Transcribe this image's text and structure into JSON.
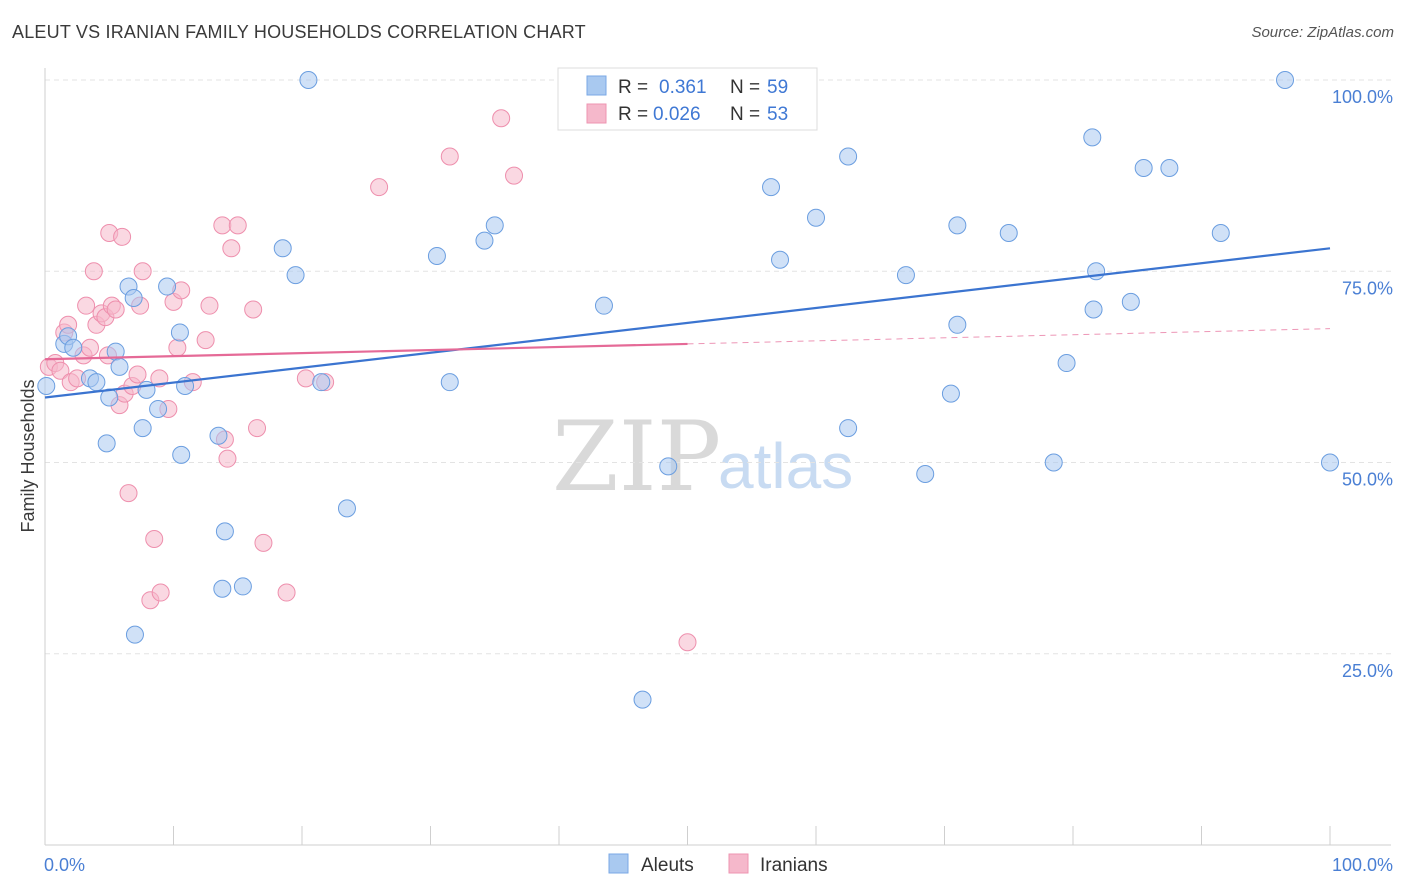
{
  "title": "ALEUT VS IRANIAN FAMILY HOUSEHOLDS CORRELATION CHART",
  "source": "Source: ZipAtlas.com",
  "watermark": {
    "zip": "ZIP",
    "atlas": "atlas"
  },
  "legend_box": {
    "rows": [
      {
        "r_label": "R =",
        "r_value": "0.361",
        "n_label": "N =",
        "n_value": "59",
        "color": "#a9c9f0"
      },
      {
        "r_label": "R =",
        "r_value": "0.026",
        "n_label": "N =",
        "n_value": "53",
        "color": "#f5b8cb"
      }
    ]
  },
  "bottom_legend": [
    {
      "label": "Aleuts",
      "color": "#a9c9f0"
    },
    {
      "label": "Iranians",
      "color": "#f5b8cb"
    }
  ],
  "chart_data": {
    "type": "scatter",
    "title": "ALEUT VS IRANIAN FAMILY HOUSEHOLDS CORRELATION CHART",
    "xlabel": "",
    "ylabel": "Family Households",
    "xlim": [
      0,
      100
    ],
    "ylim": [
      0,
      105
    ],
    "x_tick_labels": [
      {
        "value": 0,
        "label": "0.0%"
      },
      {
        "value": 100,
        "label": "100.0%"
      }
    ],
    "y_tick_labels": [
      {
        "value": 25,
        "label": "25.0%"
      },
      {
        "value": 50,
        "label": "50.0%"
      },
      {
        "value": 75,
        "label": "75.0%"
      },
      {
        "value": 100,
        "label": "100.0%"
      }
    ],
    "grid": true,
    "legend_position": "top-center",
    "series": [
      {
        "name": "Aleuts",
        "color": "#a9c9f0",
        "stroke": "#6b9ee0",
        "trend": {
          "x": [
            0,
            100
          ],
          "y": [
            58.5,
            78
          ],
          "color": "#3b74d0"
        },
        "points": [
          [
            0.1,
            60
          ],
          [
            1.5,
            65.5
          ],
          [
            1.8,
            66.5
          ],
          [
            2.2,
            65
          ],
          [
            3.5,
            61
          ],
          [
            4,
            60.5
          ],
          [
            4.8,
            52.5
          ],
          [
            5,
            58.5
          ],
          [
            5.5,
            64.5
          ],
          [
            5.8,
            62.5
          ],
          [
            6.5,
            73
          ],
          [
            6.9,
            71.5
          ],
          [
            7,
            27.5
          ],
          [
            7.6,
            54.5
          ],
          [
            7.9,
            59.5
          ],
          [
            8.8,
            57
          ],
          [
            9.5,
            73
          ],
          [
            10.5,
            67
          ],
          [
            10.6,
            51
          ],
          [
            10.9,
            60
          ],
          [
            13.5,
            53.5
          ],
          [
            13.8,
            33.5
          ],
          [
            14,
            41
          ],
          [
            15.4,
            33.8
          ],
          [
            18.5,
            78
          ],
          [
            19.5,
            74.5
          ],
          [
            20.5,
            100
          ],
          [
            21.5,
            60.5
          ],
          [
            23.5,
            44
          ],
          [
            30.5,
            77
          ],
          [
            31.5,
            60.5
          ],
          [
            34.2,
            79
          ],
          [
            35,
            81
          ],
          [
            43.5,
            70.5
          ],
          [
            46.5,
            19
          ],
          [
            48.5,
            49.5
          ],
          [
            56.5,
            86
          ],
          [
            57.2,
            76.5
          ],
          [
            60,
            82
          ],
          [
            62.5,
            90
          ],
          [
            62.5,
            54.5
          ],
          [
            67,
            74.5
          ],
          [
            68.5,
            48.5
          ],
          [
            70.5,
            59
          ],
          [
            71,
            68
          ],
          [
            71,
            81
          ],
          [
            75,
            80
          ],
          [
            78.5,
            50
          ],
          [
            79.5,
            63
          ],
          [
            81.5,
            92.5
          ],
          [
            81.6,
            70
          ],
          [
            81.8,
            75
          ],
          [
            84.5,
            71
          ],
          [
            85.5,
            88.5
          ],
          [
            87.5,
            88.5
          ],
          [
            91.5,
            80
          ],
          [
            96.5,
            100
          ],
          [
            100,
            50
          ],
          [
            56,
            100
          ]
        ]
      },
      {
        "name": "Iranians",
        "color": "#f5b8cb",
        "stroke": "#ee8fad",
        "trend": {
          "x": [
            0,
            50
          ],
          "y": [
            63.5,
            65.5
          ],
          "color": "#e56a97",
          "dashed_extension": {
            "x": [
              50,
              100
            ],
            "y": [
              65.5,
              67.5
            ]
          }
        },
        "points": [
          [
            0.3,
            62.5
          ],
          [
            0.8,
            63
          ],
          [
            1.2,
            62
          ],
          [
            1.5,
            67
          ],
          [
            1.8,
            68
          ],
          [
            2,
            60.5
          ],
          [
            2.5,
            61
          ],
          [
            3,
            64
          ],
          [
            3.2,
            70.5
          ],
          [
            3.5,
            65
          ],
          [
            3.8,
            75
          ],
          [
            4,
            68
          ],
          [
            4.4,
            69.5
          ],
          [
            4.7,
            69
          ],
          [
            4.9,
            64
          ],
          [
            5,
            80
          ],
          [
            5.2,
            70.5
          ],
          [
            5.5,
            70
          ],
          [
            5.8,
            57.5
          ],
          [
            6,
            79.5
          ],
          [
            6.2,
            59
          ],
          [
            6.5,
            46
          ],
          [
            6.8,
            60
          ],
          [
            7.2,
            61.5
          ],
          [
            7.4,
            70.5
          ],
          [
            7.6,
            75
          ],
          [
            8.2,
            32
          ],
          [
            8.5,
            40
          ],
          [
            8.9,
            61
          ],
          [
            9,
            33
          ],
          [
            9.6,
            57
          ],
          [
            10,
            71
          ],
          [
            10.3,
            65
          ],
          [
            10.6,
            72.5
          ],
          [
            11.5,
            60.5
          ],
          [
            12.8,
            70.5
          ],
          [
            13.8,
            81
          ],
          [
            14,
            53
          ],
          [
            14.2,
            50.5
          ],
          [
            14.5,
            78
          ],
          [
            15,
            81
          ],
          [
            16.2,
            70
          ],
          [
            16.5,
            54.5
          ],
          [
            17,
            39.5
          ],
          [
            18.8,
            33
          ],
          [
            20.3,
            61
          ],
          [
            21.8,
            60.5
          ],
          [
            26,
            86
          ],
          [
            31.5,
            90
          ],
          [
            35.5,
            95
          ],
          [
            36.5,
            87.5
          ],
          [
            50,
            26.5
          ],
          [
            12.5,
            66
          ]
        ]
      }
    ]
  }
}
